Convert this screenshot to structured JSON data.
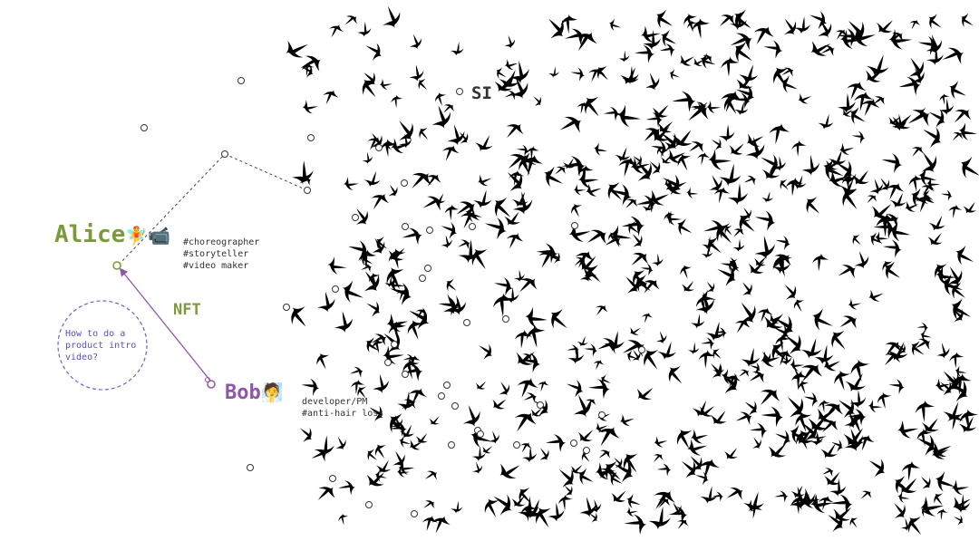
{
  "people": {
    "alice": {
      "name": "Alice",
      "emoji": "🧚📹",
      "tags": [
        "#choreographer",
        "#storyteller",
        "#video maker"
      ],
      "color": "#7a9a3c"
    },
    "bob": {
      "name": "Bob",
      "emoji": "🧖",
      "tags": [
        "developer/PM",
        "#anti-hair loss"
      ],
      "color": "#8e56a8"
    }
  },
  "edge_label": "NFT",
  "flock_label": "SI",
  "question_bubble": {
    "lines": [
      "How to do a",
      "product intro",
      "video?"
    ],
    "color": "#5a4fc4"
  }
}
